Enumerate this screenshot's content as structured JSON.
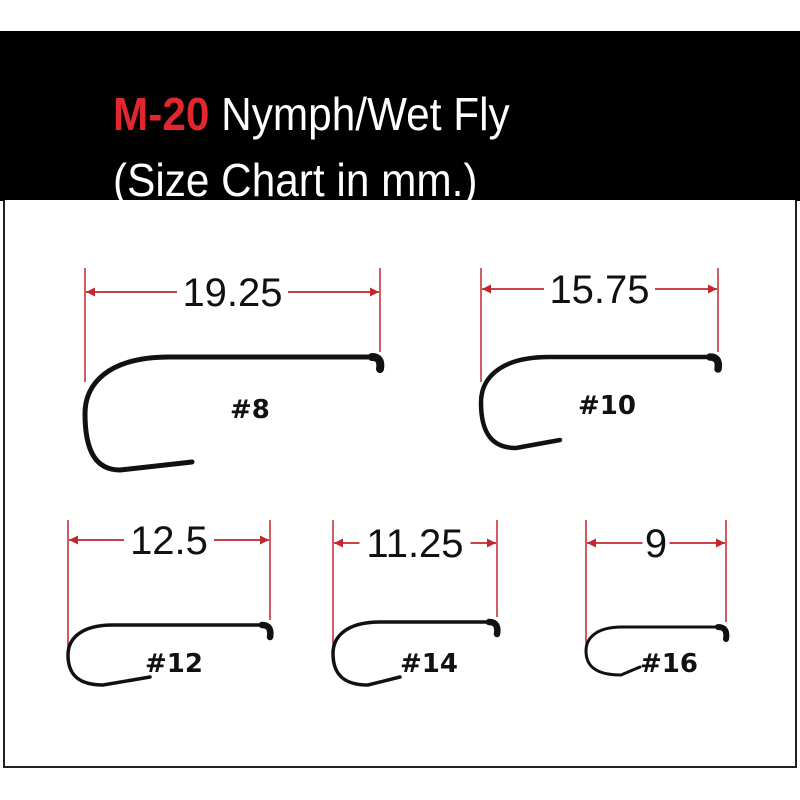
{
  "header": {
    "code": "M-20",
    "title": "Nymph/Wet Fly",
    "subtitle": "(Size Chart in mm.)"
  },
  "colors": {
    "accent": "#e1262d",
    "dimension_line": "#c1272d",
    "hook": "#111111",
    "header_bg": "#000000"
  },
  "hooks": [
    {
      "size": "#8",
      "length": "19.25"
    },
    {
      "size": "#10",
      "length": "15.75"
    },
    {
      "size": "#12",
      "length": "12.5"
    },
    {
      "size": "#14",
      "length": "11.25"
    },
    {
      "size": "#16",
      "length": "9"
    }
  ]
}
